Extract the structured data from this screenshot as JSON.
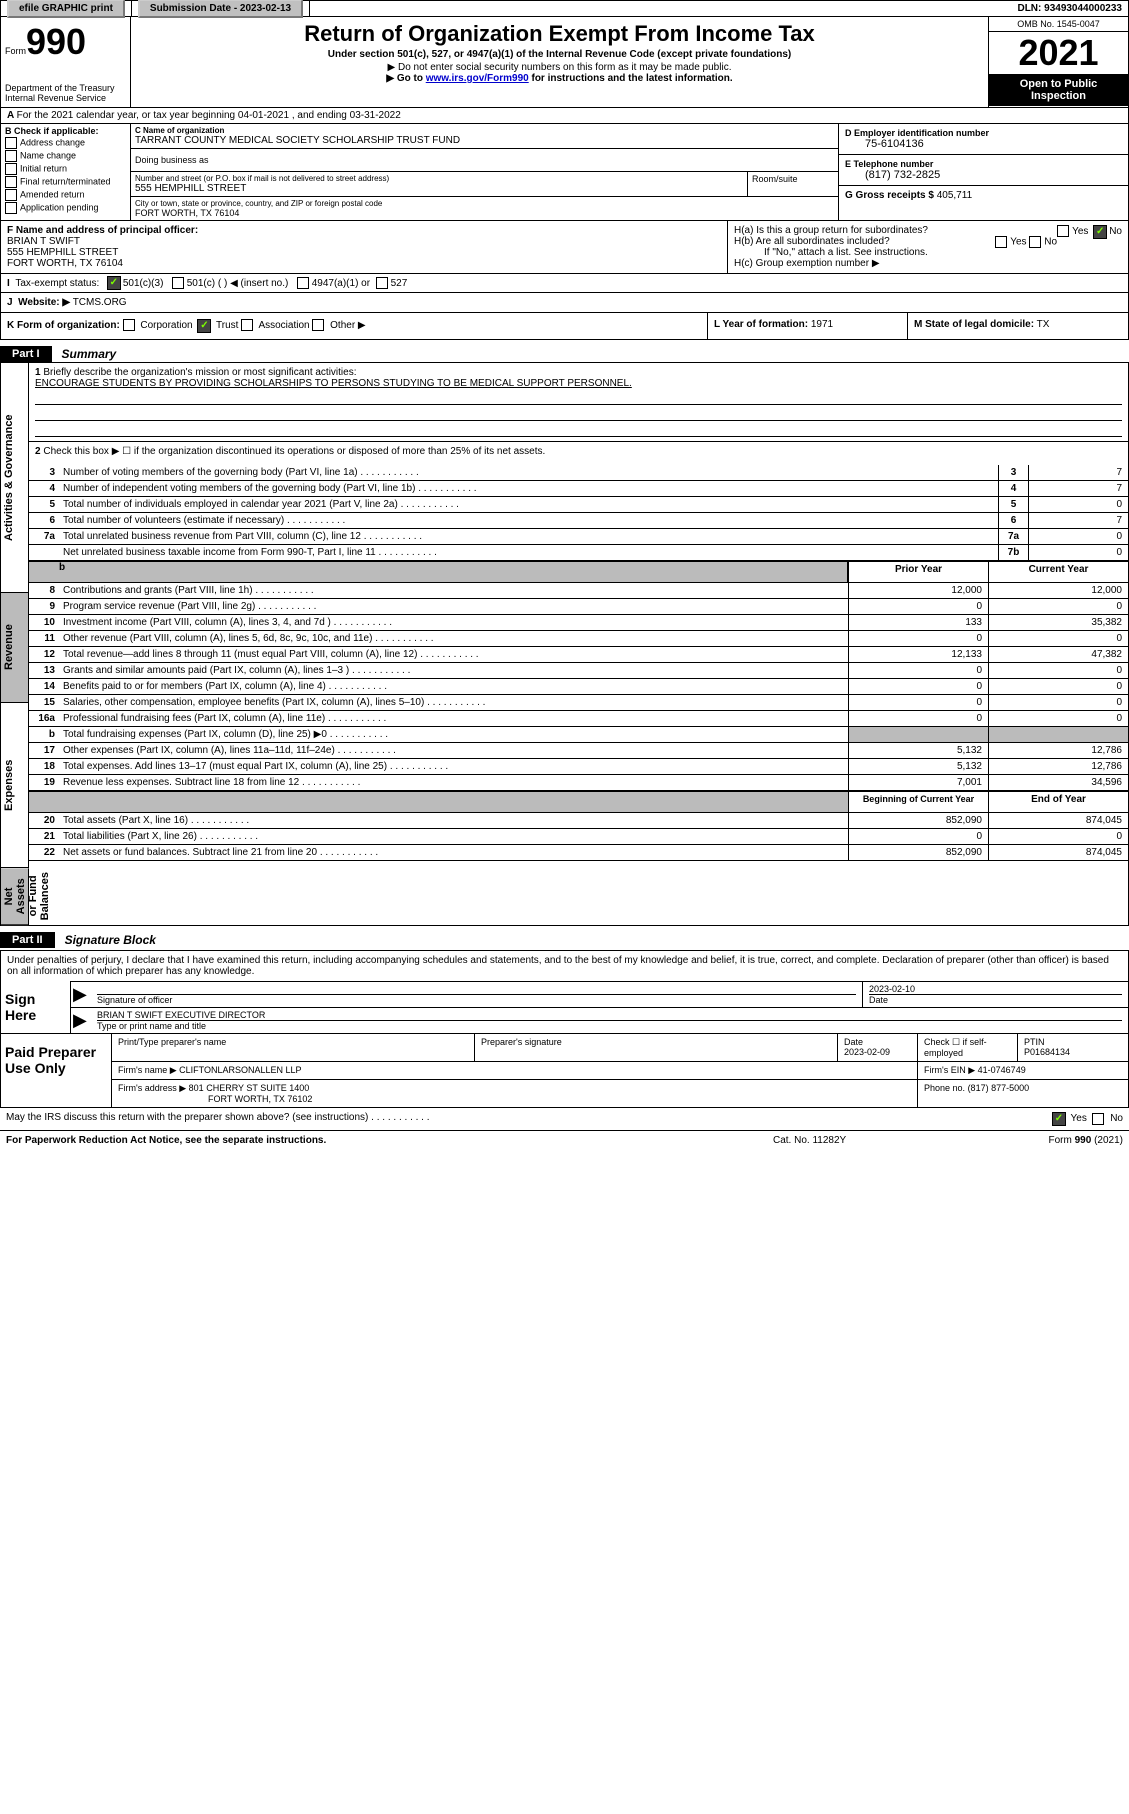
{
  "topbar": {
    "efile": "efile GRAPHIC print",
    "sub_label": "Submission Date - 2023-02-13",
    "dln": "DLN: 93493044000233"
  },
  "header": {
    "form_word": "Form",
    "form_num": "990",
    "dept": "Department of the Treasury",
    "irs": "Internal Revenue Service",
    "title": "Return of Organization Exempt From Income Tax",
    "sub1": "Under section 501(c), 527, or 4947(a)(1) of the Internal Revenue Code (except private foundations)",
    "sub2": "▶ Do not enter social security numbers on this form as it may be made public.",
    "sub3_pre": "▶ Go to ",
    "sub3_link": "www.irs.gov/Form990",
    "sub3_post": " for instructions and the latest information.",
    "omb": "OMB No. 1545-0047",
    "year": "2021",
    "open": "Open to Public Inspection"
  },
  "rowA": {
    "text": "For the 2021 calendar year, or tax year beginning 04-01-2021   , and ending 03-31-2022"
  },
  "boxB": {
    "hdr": "B Check if applicable:",
    "opts": [
      "Address change",
      "Name change",
      "Initial return",
      "Final return/terminated",
      "Amended return",
      "Application pending"
    ]
  },
  "boxC": {
    "name_lbl": "C Name of organization",
    "name": "TARRANT COUNTY MEDICAL SOCIETY SCHOLARSHIP TRUST FUND",
    "dba_lbl": "Doing business as",
    "street_lbl": "Number and street (or P.O. box if mail is not delivered to street address)",
    "street": "555 HEMPHILL STREET",
    "room_lbl": "Room/suite",
    "city_lbl": "City or town, state or province, country, and ZIP or foreign postal code",
    "city": "FORT WORTH, TX  76104"
  },
  "boxD": {
    "ein_lbl": "D Employer identification number",
    "ein": "75-6104136",
    "tel_lbl": "E Telephone number",
    "tel": "(817) 732-2825",
    "gross_lbl": "G Gross receipts $",
    "gross": "405,711"
  },
  "boxF": {
    "lbl": "F Name and address of principal officer:",
    "name": "BRIAN T SWIFT",
    "addr1": "555 HEMPHILL STREET",
    "addr2": "FORT WORTH, TX  76104"
  },
  "boxH": {
    "ha": "H(a)  Is this a group return for subordinates?",
    "hb": "H(b)  Are all subordinates included?",
    "hb_note": "If \"No,\" attach a list. See instructions.",
    "hc": "H(c)  Group exemption number ▶",
    "yes": "Yes",
    "no": "No"
  },
  "rowI": {
    "lbl": "Tax-exempt status:",
    "o1": "501(c)(3)",
    "o2": "501(c) (  ) ◀ (insert no.)",
    "o3": "4947(a)(1) or",
    "o4": "527"
  },
  "rowJ": {
    "lbl": "Website: ▶",
    "val": "TCMS.ORG"
  },
  "rowK": {
    "lbl": "K Form of organization:",
    "o1": "Corporation",
    "o2": "Trust",
    "o3": "Association",
    "o4": "Other ▶"
  },
  "rowL": {
    "lbl": "L Year of formation:",
    "val": "1971"
  },
  "rowM": {
    "lbl": "M State of legal domicile:",
    "val": "TX"
  },
  "part1": {
    "num": "Part I",
    "title": "Summary"
  },
  "mission": {
    "q": "Briefly describe the organization's mission or most significant activities:",
    "a": "ENCOURAGE STUDENTS BY PROVIDING SCHOLARSHIPS TO PERSONS STUDYING TO BE MEDICAL SUPPORT PERSONNEL."
  },
  "line2": "Check this box ▶ ☐  if the organization discontinued its operations or disposed of more than 25% of its net assets.",
  "gov_lines": [
    {
      "n": "3",
      "t": "Number of voting members of the governing body (Part VI, line 1a)",
      "box": "3",
      "v": "7"
    },
    {
      "n": "4",
      "t": "Number of independent voting members of the governing body (Part VI, line 1b)",
      "box": "4",
      "v": "7"
    },
    {
      "n": "5",
      "t": "Total number of individuals employed in calendar year 2021 (Part V, line 2a)",
      "box": "5",
      "v": "0"
    },
    {
      "n": "6",
      "t": "Total number of volunteers (estimate if necessary)",
      "box": "6",
      "v": "7"
    },
    {
      "n": "7a",
      "t": "Total unrelated business revenue from Part VIII, column (C), line 12",
      "box": "7a",
      "v": "0"
    },
    {
      "n": "",
      "t": "Net unrelated business taxable income from Form 990-T, Part I, line 11",
      "box": "7b",
      "v": "0"
    }
  ],
  "col_hdr": {
    "prior": "Prior Year",
    "curr": "Current Year"
  },
  "rev_lines": [
    {
      "n": "8",
      "t": "Contributions and grants (Part VIII, line 1h)",
      "p": "12,000",
      "c": "12,000"
    },
    {
      "n": "9",
      "t": "Program service revenue (Part VIII, line 2g)",
      "p": "0",
      "c": "0"
    },
    {
      "n": "10",
      "t": "Investment income (Part VIII, column (A), lines 3, 4, and 7d )",
      "p": "133",
      "c": "35,382"
    },
    {
      "n": "11",
      "t": "Other revenue (Part VIII, column (A), lines 5, 6d, 8c, 9c, 10c, and 11e)",
      "p": "0",
      "c": "0"
    },
    {
      "n": "12",
      "t": "Total revenue—add lines 8 through 11 (must equal Part VIII, column (A), line 12)",
      "p": "12,133",
      "c": "47,382"
    }
  ],
  "exp_lines": [
    {
      "n": "13",
      "t": "Grants and similar amounts paid (Part IX, column (A), lines 1–3 )",
      "p": "0",
      "c": "0"
    },
    {
      "n": "14",
      "t": "Benefits paid to or for members (Part IX, column (A), line 4)",
      "p": "0",
      "c": "0"
    },
    {
      "n": "15",
      "t": "Salaries, other compensation, employee benefits (Part IX, column (A), lines 5–10)",
      "p": "0",
      "c": "0"
    },
    {
      "n": "16a",
      "t": "Professional fundraising fees (Part IX, column (A), line 11e)",
      "p": "0",
      "c": "0"
    },
    {
      "n": "b",
      "t": "Total fundraising expenses (Part IX, column (D), line 25) ▶0",
      "p": "",
      "c": "",
      "gray": true
    },
    {
      "n": "17",
      "t": "Other expenses (Part IX, column (A), lines 11a–11d, 11f–24e)",
      "p": "5,132",
      "c": "12,786"
    },
    {
      "n": "18",
      "t": "Total expenses. Add lines 13–17 (must equal Part IX, column (A), line 25)",
      "p": "5,132",
      "c": "12,786"
    },
    {
      "n": "19",
      "t": "Revenue less expenses. Subtract line 18 from line 12",
      "p": "7,001",
      "c": "34,596"
    }
  ],
  "col_hdr2": {
    "prior": "Beginning of Current Year",
    "curr": "End of Year"
  },
  "asset_lines": [
    {
      "n": "20",
      "t": "Total assets (Part X, line 16)",
      "p": "852,090",
      "c": "874,045"
    },
    {
      "n": "21",
      "t": "Total liabilities (Part X, line 26)",
      "p": "0",
      "c": "0"
    },
    {
      "n": "22",
      "t": "Net assets or fund balances. Subtract line 21 from line 20",
      "p": "852,090",
      "c": "874,045"
    }
  ],
  "side_labels": {
    "ag": "Activities & Governance",
    "rev": "Revenue",
    "exp": "Expenses",
    "net": "Net Assets or Fund Balances"
  },
  "part2": {
    "num": "Part II",
    "title": "Signature Block"
  },
  "sig": {
    "intro": "Under penalties of perjury, I declare that I have examined this return, including accompanying schedules and statements, and to the best of my knowledge and belief, it is true, correct, and complete. Declaration of preparer (other than officer) is based on all information of which preparer has any knowledge.",
    "sign_here": "Sign Here",
    "sig_of_officer": "Signature of officer",
    "date": "2023-02-10",
    "date_lbl": "Date",
    "name": "BRIAN T SWIFT  EXECUTIVE DIRECTOR",
    "name_lbl": "Type or print name and title"
  },
  "prep": {
    "hdr": "Paid Preparer Use Only",
    "pt_name_lbl": "Print/Type preparer's name",
    "pt_sig_lbl": "Preparer's signature",
    "pt_date_lbl": "Date",
    "pt_date": "2023-02-09",
    "chk_lbl": "Check ☐ if self-employed",
    "ptin_lbl": "PTIN",
    "ptin": "P01684134",
    "firm_name_lbl": "Firm's name   ▶",
    "firm_name": "CLIFTONLARSONALLEN LLP",
    "firm_ein_lbl": "Firm's EIN ▶",
    "firm_ein": "41-0746749",
    "firm_addr_lbl": "Firm's address ▶",
    "firm_addr1": "801 CHERRY ST SUITE 1400",
    "firm_addr2": "FORT WORTH, TX  76102",
    "phone_lbl": "Phone no.",
    "phone": "(817) 877-5000"
  },
  "discuss": {
    "q": "May the IRS discuss this return with the preparer shown above? (see instructions)",
    "yes": "Yes",
    "no": "No"
  },
  "footer": {
    "left": "For Paperwork Reduction Act Notice, see the separate instructions.",
    "mid": "Cat. No. 11282Y",
    "right": "Form 990 (2021)"
  }
}
